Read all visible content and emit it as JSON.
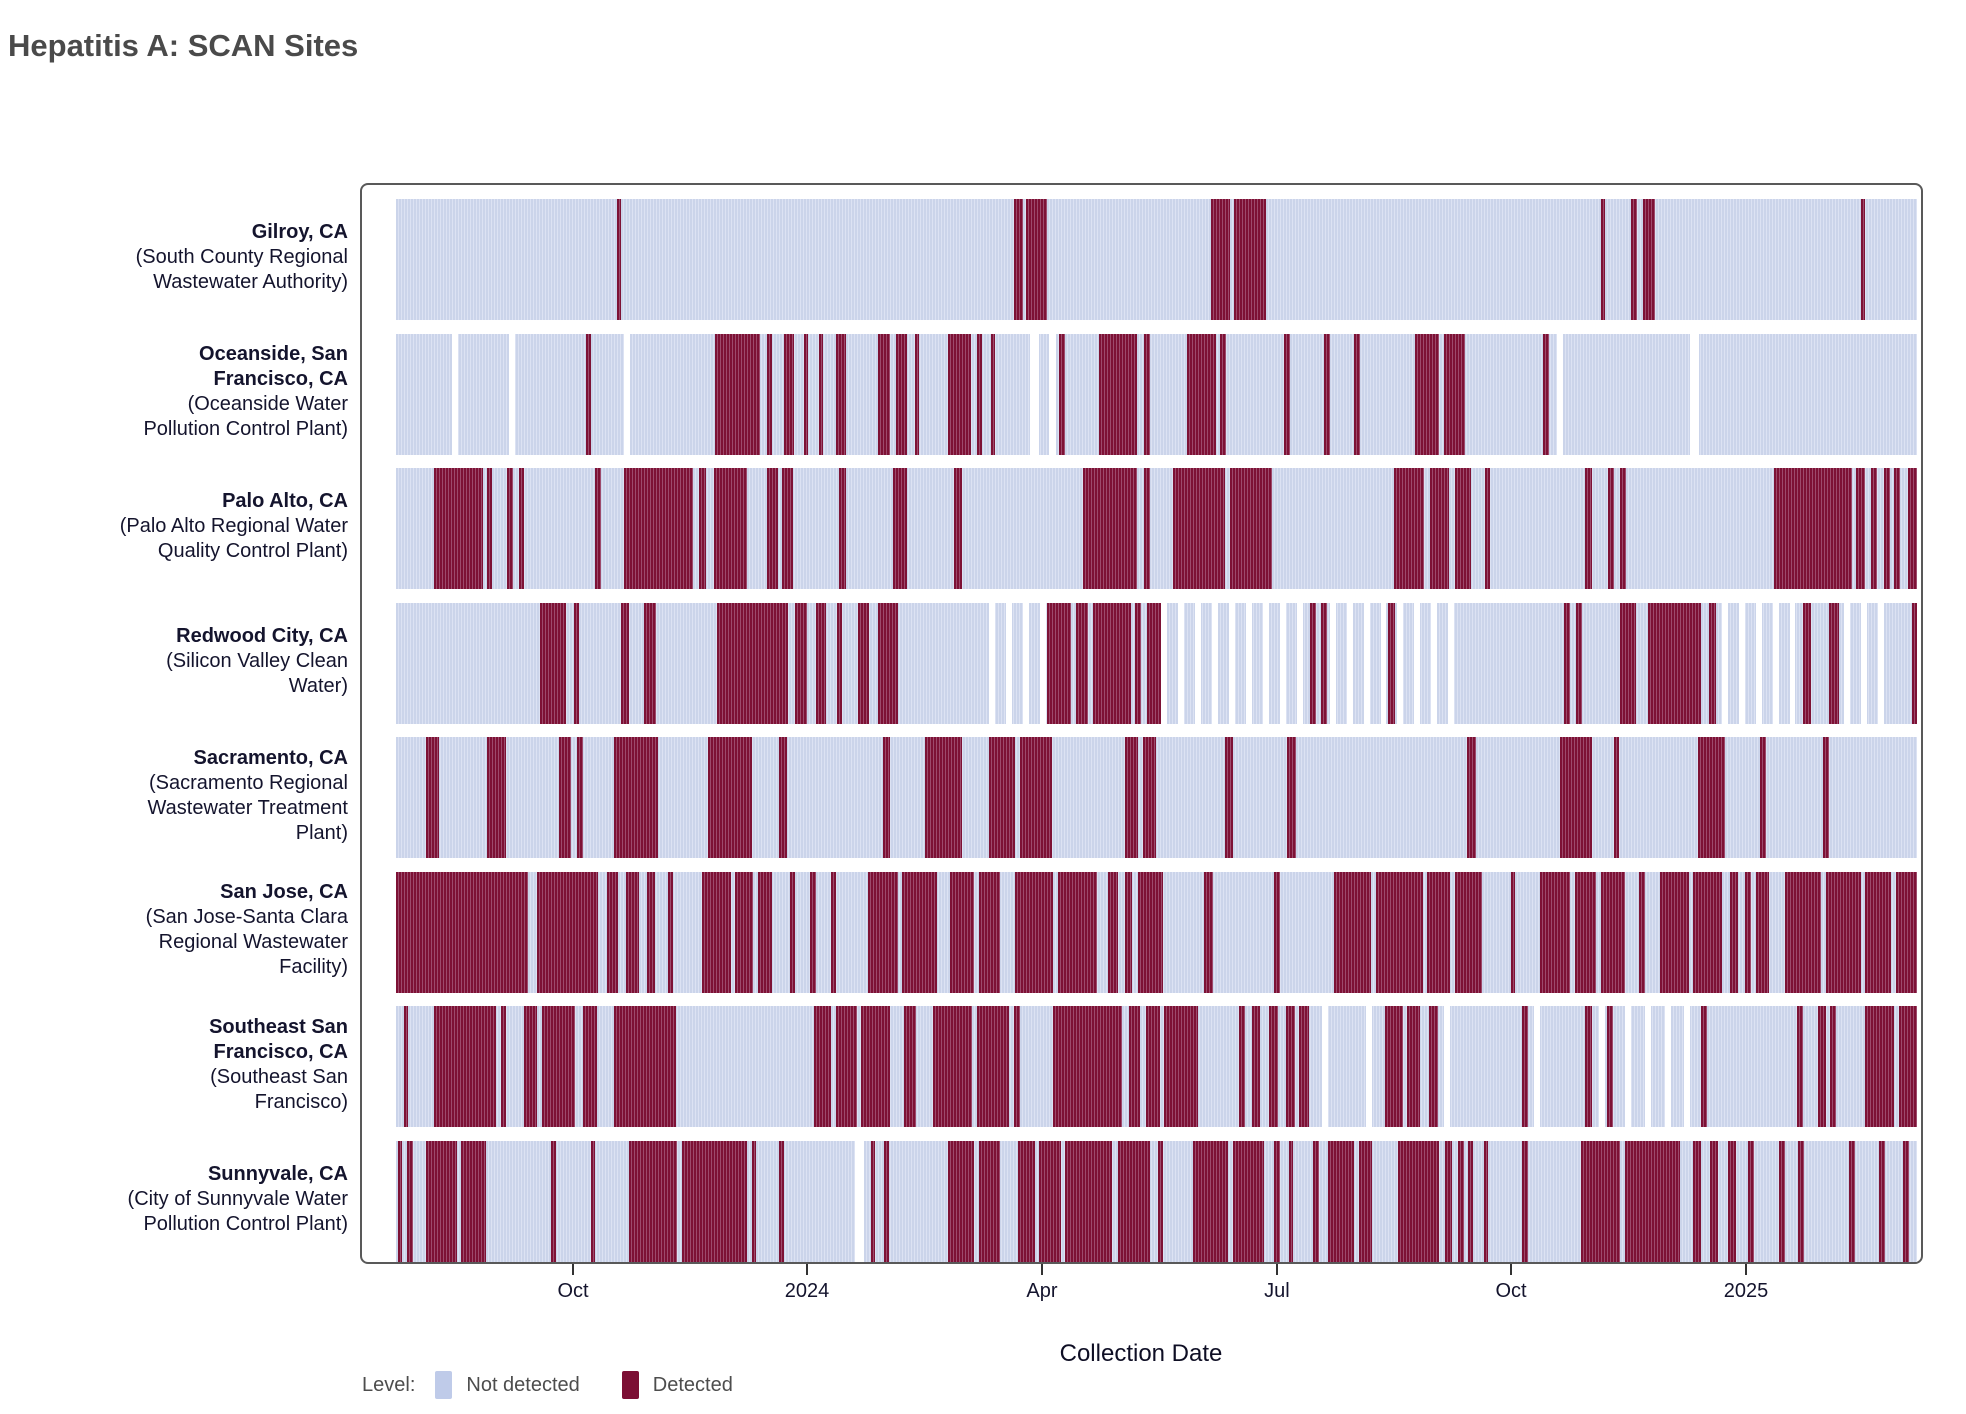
{
  "title": "Hepatitis A: SCAN Sites",
  "axis": {
    "label": "Collection Date",
    "ticks": [
      {
        "label": "Oct",
        "pos": 0.1164
      },
      {
        "label": "2024",
        "pos": 0.2702
      },
      {
        "label": "Apr",
        "pos": 0.4247
      },
      {
        "label": "Jul",
        "pos": 0.5792
      },
      {
        "label": "Oct",
        "pos": 0.7331
      },
      {
        "label": "2025",
        "pos": 0.8876
      }
    ]
  },
  "legend": {
    "title": "Level:",
    "items": [
      {
        "label": "Not detected",
        "color": "#bfcbe9"
      },
      {
        "label": "Detected",
        "color": "#7c0f34"
      }
    ]
  },
  "colors": {
    "detected": "#7d1135",
    "detected_stripe": "#9d4a6c",
    "not_detected": "#cbd4ea",
    "not_detected_stripe": "#dce2f3",
    "panel_border": "#595959",
    "label_text": "#14142d",
    "title_text": "#4a4a4a",
    "legend_text": "#4d4d4d"
  },
  "chart_data": {
    "type": "heatmap",
    "title": "Hepatitis A: SCAN Sites",
    "xlabel": "Collection Date",
    "x_tick_labels": [
      "Oct",
      "2024",
      "Apr",
      "Jul",
      "Oct",
      "2025"
    ],
    "legend_position": "bottom",
    "levels": [
      "Not detected",
      "Detected"
    ],
    "note": "Barcode-style daily detection timeline per site; segments are fractional positions [start,end] along the collection-date axis (approx. Aug 2023 - Mar 2025). 'detected' = dark red, background = not detected, 'missing' = white gaps (no sample), 'sparse' = periods of intermittent sampling with periodic white gaps.",
    "sites": [
      {
        "city_lines": [
          "Gilroy, CA"
        ],
        "plant_lines": [
          "(South County Regional",
          "Wastewater Authority)"
        ],
        "detected": [
          [
            0.145,
            0.148
          ],
          [
            0.406,
            0.412
          ],
          [
            0.414,
            0.428
          ],
          [
            0.536,
            0.548
          ],
          [
            0.551,
            0.572
          ],
          [
            0.792,
            0.795
          ],
          [
            0.812,
            0.816
          ],
          [
            0.82,
            0.828
          ],
          [
            0.963,
            0.966
          ]
        ],
        "missing": [],
        "sparse": []
      },
      {
        "city_lines": [
          "Oceanside, San",
          "Francisco, CA"
        ],
        "plant_lines": [
          "(Oceanside Water",
          "Pollution Control Plant)"
        ],
        "detected": [
          [
            0.125,
            0.128
          ],
          [
            0.21,
            0.239
          ],
          [
            0.244,
            0.247
          ],
          [
            0.255,
            0.262
          ],
          [
            0.268,
            0.271
          ],
          [
            0.278,
            0.281
          ],
          [
            0.289,
            0.296
          ],
          [
            0.317,
            0.325
          ],
          [
            0.329,
            0.336
          ],
          [
            0.341,
            0.344
          ],
          [
            0.363,
            0.378
          ],
          [
            0.382,
            0.385
          ],
          [
            0.391,
            0.394
          ],
          [
            0.436,
            0.44
          ],
          [
            0.462,
            0.487
          ],
          [
            0.492,
            0.496
          ],
          [
            0.52,
            0.539
          ],
          [
            0.542,
            0.546
          ],
          [
            0.584,
            0.588
          ],
          [
            0.61,
            0.614
          ],
          [
            0.63,
            0.634
          ],
          [
            0.67,
            0.686
          ],
          [
            0.689,
            0.703
          ],
          [
            0.754,
            0.758
          ]
        ],
        "missing": [
          [
            0.037,
            0.041
          ],
          [
            0.074,
            0.078
          ],
          [
            0.15,
            0.154
          ],
          [
            0.417,
            0.423
          ],
          [
            0.429,
            0.434
          ],
          [
            0.763,
            0.767
          ],
          [
            0.851,
            0.857
          ]
        ],
        "sparse": []
      },
      {
        "city_lines": [
          "Palo Alto, CA"
        ],
        "plant_lines": [
          "(Palo Alto Regional Water",
          "Quality Control Plant)"
        ],
        "detected": [
          [
            0.025,
            0.057
          ],
          [
            0.06,
            0.063
          ],
          [
            0.073,
            0.077
          ],
          [
            0.081,
            0.084
          ],
          [
            0.131,
            0.135
          ],
          [
            0.15,
            0.195
          ],
          [
            0.199,
            0.204
          ],
          [
            0.209,
            0.231
          ],
          [
            0.244,
            0.251
          ],
          [
            0.254,
            0.261
          ],
          [
            0.291,
            0.296
          ],
          [
            0.327,
            0.336
          ],
          [
            0.367,
            0.372
          ],
          [
            0.452,
            0.487
          ],
          [
            0.492,
            0.496
          ],
          [
            0.511,
            0.545
          ],
          [
            0.548,
            0.576
          ],
          [
            0.656,
            0.676
          ],
          [
            0.68,
            0.692
          ],
          [
            0.696,
            0.707
          ],
          [
            0.716,
            0.719
          ],
          [
            0.782,
            0.786
          ],
          [
            0.797,
            0.801
          ],
          [
            0.805,
            0.809
          ],
          [
            0.906,
            0.957
          ],
          [
            0.96,
            0.966
          ],
          [
            0.97,
            0.974
          ],
          [
            0.978,
            0.982
          ],
          [
            0.985,
            0.989
          ],
          [
            0.994,
            1.0
          ]
        ],
        "missing": [],
        "sparse": []
      },
      {
        "city_lines": [
          "Redwood City, CA"
        ],
        "plant_lines": [
          "(Silicon Valley Clean",
          "Water)"
        ],
        "detected": [
          [
            0.095,
            0.112
          ],
          [
            0.117,
            0.12
          ],
          [
            0.148,
            0.153
          ],
          [
            0.163,
            0.171
          ],
          [
            0.211,
            0.258
          ],
          [
            0.262,
            0.27
          ],
          [
            0.276,
            0.283
          ],
          [
            0.29,
            0.293
          ],
          [
            0.304,
            0.311
          ],
          [
            0.317,
            0.33
          ],
          [
            0.428,
            0.444
          ],
          [
            0.447,
            0.455
          ],
          [
            0.458,
            0.483
          ],
          [
            0.486,
            0.49
          ],
          [
            0.494,
            0.503
          ],
          [
            0.601,
            0.605
          ],
          [
            0.608,
            0.612
          ],
          [
            0.652,
            0.657
          ],
          [
            0.768,
            0.772
          ],
          [
            0.776,
            0.78
          ],
          [
            0.805,
            0.815
          ],
          [
            0.823,
            0.858
          ],
          [
            0.863,
            0.868
          ],
          [
            0.925,
            0.93
          ],
          [
            0.942,
            0.949
          ],
          [
            0.997,
            1.0
          ]
        ],
        "missing": [],
        "sparse": [
          [
            0.39,
            0.428
          ],
          [
            0.503,
            0.598
          ],
          [
            0.614,
            0.651
          ],
          [
            0.658,
            0.7
          ],
          [
            0.872,
            0.92
          ],
          [
            0.952,
            0.985
          ]
        ]
      },
      {
        "city_lines": [
          "Sacramento, CA"
        ],
        "plant_lines": [
          "(Sacramento Regional",
          "Wastewater Treatment",
          "Plant)"
        ],
        "detected": [
          [
            0.02,
            0.028
          ],
          [
            0.06,
            0.072
          ],
          [
            0.107,
            0.115
          ],
          [
            0.119,
            0.123
          ],
          [
            0.143,
            0.172
          ],
          [
            0.205,
            0.234
          ],
          [
            0.252,
            0.257
          ],
          [
            0.32,
            0.325
          ],
          [
            0.348,
            0.372
          ],
          [
            0.39,
            0.407
          ],
          [
            0.41,
            0.431
          ],
          [
            0.479,
            0.488
          ],
          [
            0.491,
            0.5
          ],
          [
            0.545,
            0.55
          ],
          [
            0.586,
            0.592
          ],
          [
            0.704,
            0.71
          ],
          [
            0.765,
            0.786
          ],
          [
            0.801,
            0.804
          ],
          [
            0.856,
            0.874
          ],
          [
            0.897,
            0.901
          ],
          [
            0.938,
            0.942
          ]
        ],
        "missing": [],
        "sparse": []
      },
      {
        "city_lines": [
          "San Jose, CA"
        ],
        "plant_lines": [
          "(San Jose-Santa Clara",
          "Regional Wastewater",
          "Facility)"
        ],
        "detected": [
          [
            0.0,
            0.087
          ],
          [
            0.093,
            0.133
          ],
          [
            0.139,
            0.146
          ],
          [
            0.151,
            0.16
          ],
          [
            0.165,
            0.17
          ],
          [
            0.179,
            0.182
          ],
          [
            0.201,
            0.22
          ],
          [
            0.223,
            0.235
          ],
          [
            0.238,
            0.247
          ],
          [
            0.259,
            0.262
          ],
          [
            0.272,
            0.276
          ],
          [
            0.286,
            0.289
          ],
          [
            0.31,
            0.33
          ],
          [
            0.333,
            0.356
          ],
          [
            0.364,
            0.38
          ],
          [
            0.383,
            0.397
          ],
          [
            0.407,
            0.432
          ],
          [
            0.435,
            0.461
          ],
          [
            0.468,
            0.475
          ],
          [
            0.479,
            0.484
          ],
          [
            0.488,
            0.504
          ],
          [
            0.531,
            0.537
          ],
          [
            0.577,
            0.581
          ],
          [
            0.617,
            0.641
          ],
          [
            0.644,
            0.675
          ],
          [
            0.678,
            0.693
          ],
          [
            0.696,
            0.714
          ],
          [
            0.733,
            0.736
          ],
          [
            0.752,
            0.772
          ],
          [
            0.775,
            0.789
          ],
          [
            0.792,
            0.808
          ],
          [
            0.817,
            0.821
          ],
          [
            0.831,
            0.85
          ],
          [
            0.853,
            0.872
          ],
          [
            0.877,
            0.882
          ],
          [
            0.887,
            0.891
          ],
          [
            0.894,
            0.903
          ],
          [
            0.913,
            0.937
          ],
          [
            0.94,
            0.963
          ],
          [
            0.966,
            0.983
          ],
          [
            0.986,
            1.0
          ]
        ],
        "missing": [],
        "sparse": []
      },
      {
        "city_lines": [
          "Southeast San",
          "Francisco, CA"
        ],
        "plant_lines": [
          "(Southeast San",
          "Francisco)"
        ],
        "detected": [
          [
            0.005,
            0.008
          ],
          [
            0.025,
            0.066
          ],
          [
            0.069,
            0.072
          ],
          [
            0.084,
            0.093
          ],
          [
            0.096,
            0.118
          ],
          [
            0.123,
            0.132
          ],
          [
            0.143,
            0.184
          ],
          [
            0.275,
            0.286
          ],
          [
            0.289,
            0.303
          ],
          [
            0.306,
            0.325
          ],
          [
            0.334,
            0.342
          ],
          [
            0.353,
            0.379
          ],
          [
            0.382,
            0.403
          ],
          [
            0.406,
            0.41
          ],
          [
            0.432,
            0.477
          ],
          [
            0.482,
            0.489
          ],
          [
            0.493,
            0.502
          ],
          [
            0.505,
            0.527
          ],
          [
            0.554,
            0.558
          ],
          [
            0.563,
            0.568
          ],
          [
            0.574,
            0.58
          ],
          [
            0.585,
            0.591
          ],
          [
            0.594,
            0.6
          ],
          [
            0.65,
            0.662
          ],
          [
            0.665,
            0.673
          ],
          [
            0.679,
            0.685
          ],
          [
            0.74,
            0.744
          ],
          [
            0.782,
            0.786
          ],
          [
            0.796,
            0.8
          ],
          [
            0.858,
            0.862
          ],
          [
            0.921,
            0.925
          ],
          [
            0.935,
            0.94
          ],
          [
            0.943,
            0.947
          ],
          [
            0.966,
            0.985
          ],
          [
            0.988,
            1.0
          ]
        ],
        "missing": [
          [
            0.609,
            0.613
          ],
          [
            0.638,
            0.642
          ],
          [
            0.689,
            0.693
          ],
          [
            0.748,
            0.752
          ],
          [
            0.791,
            0.795
          ],
          [
            0.808,
            0.812
          ],
          [
            0.821,
            0.825
          ],
          [
            0.834,
            0.838
          ],
          [
            0.847,
            0.851
          ]
        ],
        "sparse": []
      },
      {
        "city_lines": [
          "Sunnyvale, CA"
        ],
        "plant_lines": [
          "(City of Sunnyvale Water",
          "Pollution Control Plant)"
        ],
        "detected": [
          [
            0.001,
            0.004
          ],
          [
            0.007,
            0.011
          ],
          [
            0.02,
            0.04
          ],
          [
            0.043,
            0.059
          ],
          [
            0.102,
            0.105
          ],
          [
            0.128,
            0.131
          ],
          [
            0.153,
            0.185
          ],
          [
            0.188,
            0.231
          ],
          [
            0.234,
            0.237
          ],
          [
            0.252,
            0.255
          ],
          [
            0.312,
            0.315
          ],
          [
            0.321,
            0.324
          ],
          [
            0.363,
            0.38
          ],
          [
            0.383,
            0.397
          ],
          [
            0.409,
            0.42
          ],
          [
            0.423,
            0.437
          ],
          [
            0.44,
            0.471
          ],
          [
            0.475,
            0.496
          ],
          [
            0.501,
            0.504
          ],
          [
            0.524,
            0.547
          ],
          [
            0.55,
            0.571
          ],
          [
            0.577,
            0.581
          ],
          [
            0.587,
            0.59
          ],
          [
            0.603,
            0.607
          ],
          [
            0.613,
            0.63
          ],
          [
            0.633,
            0.642
          ],
          [
            0.659,
            0.686
          ],
          [
            0.69,
            0.694
          ],
          [
            0.698,
            0.702
          ],
          [
            0.705,
            0.708
          ],
          [
            0.715,
            0.718
          ],
          [
            0.74,
            0.744
          ],
          [
            0.779,
            0.805
          ],
          [
            0.808,
            0.844
          ],
          [
            0.853,
            0.858
          ],
          [
            0.864,
            0.869
          ],
          [
            0.876,
            0.881
          ],
          [
            0.889,
            0.893
          ],
          [
            0.909,
            0.913
          ],
          [
            0.922,
            0.926
          ],
          [
            0.955,
            0.959
          ],
          [
            0.975,
            0.979
          ],
          [
            0.991,
            0.995
          ]
        ],
        "missing": [
          [
            0.302,
            0.308
          ]
        ],
        "sparse": []
      }
    ]
  }
}
